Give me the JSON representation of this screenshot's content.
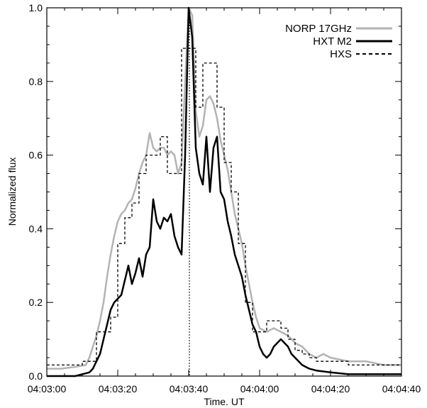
{
  "chart_data": {
    "type": "line",
    "title": "",
    "xlabel": "Time. UT",
    "ylabel": "Normalized flux",
    "xlim_seconds": [
      0,
      100
    ],
    "ylim": [
      0.0,
      1.0
    ],
    "x_ticks": [
      {
        "t": 0,
        "label": "04:03:00"
      },
      {
        "t": 20,
        "label": "04:03:20"
      },
      {
        "t": 40,
        "label": "04:03:40"
      },
      {
        "t": 60,
        "label": "04:04:00"
      },
      {
        "t": 80,
        "label": "04:04:20"
      },
      {
        "t": 100,
        "label": "04:04:40"
      }
    ],
    "y_ticks": [
      {
        "v": 0.0,
        "label": "0.0"
      },
      {
        "v": 0.2,
        "label": "0.2"
      },
      {
        "v": 0.4,
        "label": "0.4"
      },
      {
        "v": 0.6,
        "label": "0.6"
      },
      {
        "v": 0.8,
        "label": "0.8"
      },
      {
        "v": 1.0,
        "label": "1.0"
      }
    ],
    "reference_line_t": 40,
    "legend_position": "top-right",
    "series": [
      {
        "name": "NORP 17GHz",
        "color": "#b3b3b3",
        "style": "solid",
        "points": [
          [
            0,
            0.02
          ],
          [
            4,
            0.02
          ],
          [
            8,
            0.025
          ],
          [
            11,
            0.03
          ],
          [
            12,
            0.05
          ],
          [
            13,
            0.08
          ],
          [
            14,
            0.11
          ],
          [
            15,
            0.15
          ],
          [
            16,
            0.2
          ],
          [
            17,
            0.27
          ],
          [
            18,
            0.33
          ],
          [
            19,
            0.38
          ],
          [
            20,
            0.42
          ],
          [
            21,
            0.44
          ],
          [
            22,
            0.45
          ],
          [
            23,
            0.47
          ],
          [
            24,
            0.48
          ],
          [
            25,
            0.51
          ],
          [
            26,
            0.55
          ],
          [
            27,
            0.58
          ],
          [
            28,
            0.6
          ],
          [
            29,
            0.66
          ],
          [
            30,
            0.62
          ],
          [
            31,
            0.61
          ],
          [
            32,
            0.62
          ],
          [
            33,
            0.62
          ],
          [
            34,
            0.6
          ],
          [
            35,
            0.61
          ],
          [
            36,
            0.6
          ],
          [
            37,
            0.55
          ],
          [
            38,
            0.58
          ],
          [
            39,
            0.8
          ],
          [
            40,
            1.0
          ],
          [
            41,
            0.98
          ],
          [
            42,
            0.72
          ],
          [
            43,
            0.65
          ],
          [
            44,
            0.68
          ],
          [
            45,
            0.75
          ],
          [
            46,
            0.76
          ],
          [
            47,
            0.74
          ],
          [
            48,
            0.7
          ],
          [
            49,
            0.64
          ],
          [
            50,
            0.6
          ],
          [
            51,
            0.56
          ],
          [
            52,
            0.5
          ],
          [
            53,
            0.44
          ],
          [
            54,
            0.4
          ],
          [
            55,
            0.36
          ],
          [
            56,
            0.3
          ],
          [
            57,
            0.25
          ],
          [
            58,
            0.2
          ],
          [
            59,
            0.16
          ],
          [
            60,
            0.13
          ],
          [
            62,
            0.12
          ],
          [
            64,
            0.13
          ],
          [
            66,
            0.12
          ],
          [
            68,
            0.11
          ],
          [
            70,
            0.09
          ],
          [
            72,
            0.08
          ],
          [
            74,
            0.06
          ],
          [
            76,
            0.05
          ],
          [
            78,
            0.06
          ],
          [
            80,
            0.05
          ],
          [
            85,
            0.04
          ],
          [
            90,
            0.04
          ],
          [
            95,
            0.03
          ],
          [
            100,
            0.03
          ]
        ]
      },
      {
        "name": "HXT M2",
        "color": "#000000",
        "style": "solid",
        "points": [
          [
            0,
            0.0
          ],
          [
            4,
            0.0
          ],
          [
            8,
            0.0
          ],
          [
            10,
            0.005
          ],
          [
            12,
            0.01
          ],
          [
            13,
            0.02
          ],
          [
            14,
            0.04
          ],
          [
            15,
            0.06
          ],
          [
            16,
            0.1
          ],
          [
            17,
            0.14
          ],
          [
            18,
            0.18
          ],
          [
            19,
            0.2
          ],
          [
            20,
            0.21
          ],
          [
            21,
            0.22
          ],
          [
            22,
            0.26
          ],
          [
            23,
            0.3
          ],
          [
            24,
            0.25
          ],
          [
            25,
            0.28
          ],
          [
            26,
            0.32
          ],
          [
            27,
            0.27
          ],
          [
            28,
            0.33
          ],
          [
            29,
            0.35
          ],
          [
            30,
            0.48
          ],
          [
            31,
            0.42
          ],
          [
            32,
            0.4
          ],
          [
            33,
            0.43
          ],
          [
            34,
            0.42
          ],
          [
            35,
            0.44
          ],
          [
            36,
            0.38
          ],
          [
            37,
            0.35
          ],
          [
            38,
            0.33
          ],
          [
            39,
            0.6
          ],
          [
            40,
            1.0
          ],
          [
            41,
            0.92
          ],
          [
            42,
            0.62
          ],
          [
            43,
            0.55
          ],
          [
            44,
            0.52
          ],
          [
            45,
            0.65
          ],
          [
            46,
            0.5
          ],
          [
            47,
            0.62
          ],
          [
            48,
            0.65
          ],
          [
            49,
            0.5
          ],
          [
            50,
            0.48
          ],
          [
            51,
            0.42
          ],
          [
            52,
            0.38
          ],
          [
            53,
            0.33
          ],
          [
            54,
            0.3
          ],
          [
            55,
            0.27
          ],
          [
            56,
            0.22
          ],
          [
            57,
            0.18
          ],
          [
            58,
            0.14
          ],
          [
            59,
            0.12
          ],
          [
            60,
            0.08
          ],
          [
            61,
            0.06
          ],
          [
            62,
            0.05
          ],
          [
            63,
            0.06
          ],
          [
            64,
            0.08
          ],
          [
            65,
            0.09
          ],
          [
            66,
            0.1
          ],
          [
            67,
            0.09
          ],
          [
            68,
            0.08
          ],
          [
            69,
            0.06
          ],
          [
            70,
            0.05
          ],
          [
            71,
            0.04
          ],
          [
            72,
            0.03
          ],
          [
            74,
            0.02
          ],
          [
            76,
            0.015
          ],
          [
            80,
            0.01
          ],
          [
            85,
            0.005
          ],
          [
            90,
            0.005
          ],
          [
            95,
            0.005
          ],
          [
            100,
            0.005
          ]
        ]
      },
      {
        "name": "HXS",
        "color": "#000000",
        "style": "dashed",
        "points": [
          [
            0,
            0.03
          ],
          [
            8,
            0.03
          ],
          [
            10,
            0.04
          ],
          [
            12,
            0.04
          ],
          [
            14,
            0.12
          ],
          [
            16,
            0.12
          ],
          [
            18,
            0.16
          ],
          [
            20,
            0.36
          ],
          [
            22,
            0.43
          ],
          [
            24,
            0.47
          ],
          [
            26,
            0.55
          ],
          [
            28,
            0.6
          ],
          [
            30,
            0.6
          ],
          [
            32,
            0.65
          ],
          [
            34,
            0.55
          ],
          [
            36,
            0.55
          ],
          [
            38,
            0.89
          ],
          [
            40,
            0.89
          ],
          [
            42,
            0.73
          ],
          [
            44,
            0.85
          ],
          [
            46,
            0.85
          ],
          [
            48,
            0.73
          ],
          [
            50,
            0.58
          ],
          [
            52,
            0.5
          ],
          [
            54,
            0.36
          ],
          [
            56,
            0.2
          ],
          [
            58,
            0.12
          ],
          [
            60,
            0.12
          ],
          [
            62,
            0.15
          ],
          [
            64,
            0.15
          ],
          [
            66,
            0.13
          ],
          [
            68,
            0.1
          ],
          [
            70,
            0.07
          ],
          [
            72,
            0.06
          ],
          [
            74,
            0.05
          ],
          [
            76,
            0.04
          ],
          [
            78,
            0.04
          ],
          [
            80,
            0.04
          ],
          [
            85,
            0.03
          ],
          [
            90,
            0.03
          ],
          [
            95,
            0.03
          ],
          [
            100,
            0.03
          ]
        ]
      }
    ]
  }
}
